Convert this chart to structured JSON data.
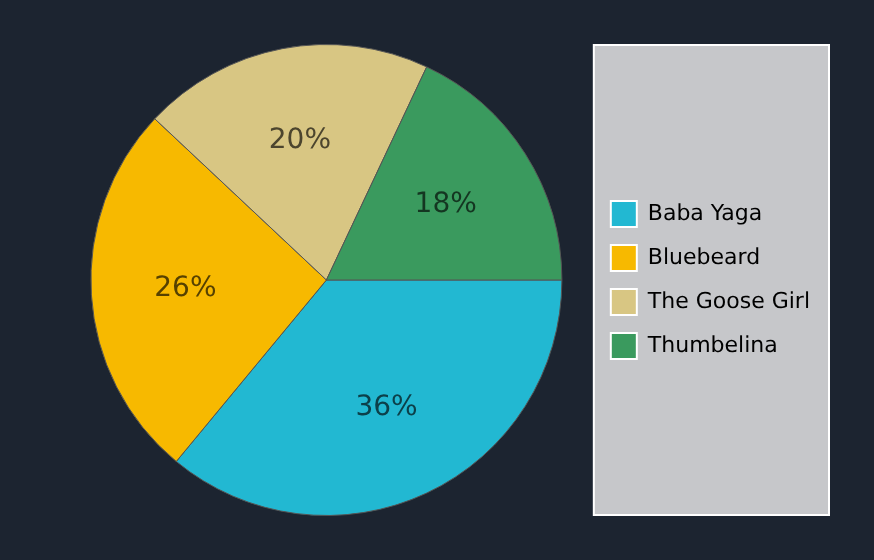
{
  "chart_data": {
    "type": "pie",
    "categories": [
      "Baba Yaga",
      "Bluebeard",
      "The Goose Girl",
      "Thumbelina"
    ],
    "values": [
      36,
      26,
      20,
      18
    ],
    "colors": [
      "#22b8d2",
      "#f7b900",
      "#d8c683",
      "#3a9a5e"
    ],
    "value_labels": [
      "36%",
      "26%",
      "20%",
      "18%"
    ],
    "legend": "right"
  }
}
